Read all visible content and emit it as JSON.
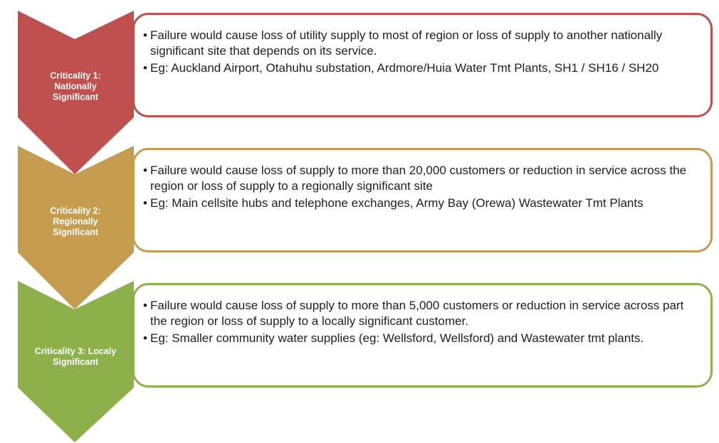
{
  "levels": [
    {
      "label": [
        "Criticality 1:",
        "Nationally",
        "Significant"
      ],
      "color": "#c0504d",
      "bullets": [
        "Failure would cause loss of utility supply to most of region or loss of supply to another nationally significant site that depends on its service.",
        "Eg:  Auckland Airport, Otahuhu substation,  Ardmore/Huia Water Tmt Plants, SH1 / SH16 / SH20"
      ]
    },
    {
      "label": [
        "Criticality 2:",
        "Regionally",
        "Significant"
      ],
      "color": "#c69c4e",
      "bullets": [
        "Failure would cause loss of supply to more than 20,000 customers or reduction in service across the region or loss of supply to a regionally significant site",
        "Eg:  Main cellsite hubs and telephone exchanges, Army Bay (Orewa)  Wastewater Tmt Plants"
      ]
    },
    {
      "label": [
        "Criticality 3: Localy",
        "Significant"
      ],
      "color": "#8db04b",
      "bullets": [
        "Failure would cause loss of supply to more than 5,000 customers or reduction in service across part the region or loss of supply to a locally significant customer.",
        "Eg: Smaller community water supplies (eg: Wellsford, Wellsford) and Wastewater tmt plants."
      ]
    }
  ]
}
